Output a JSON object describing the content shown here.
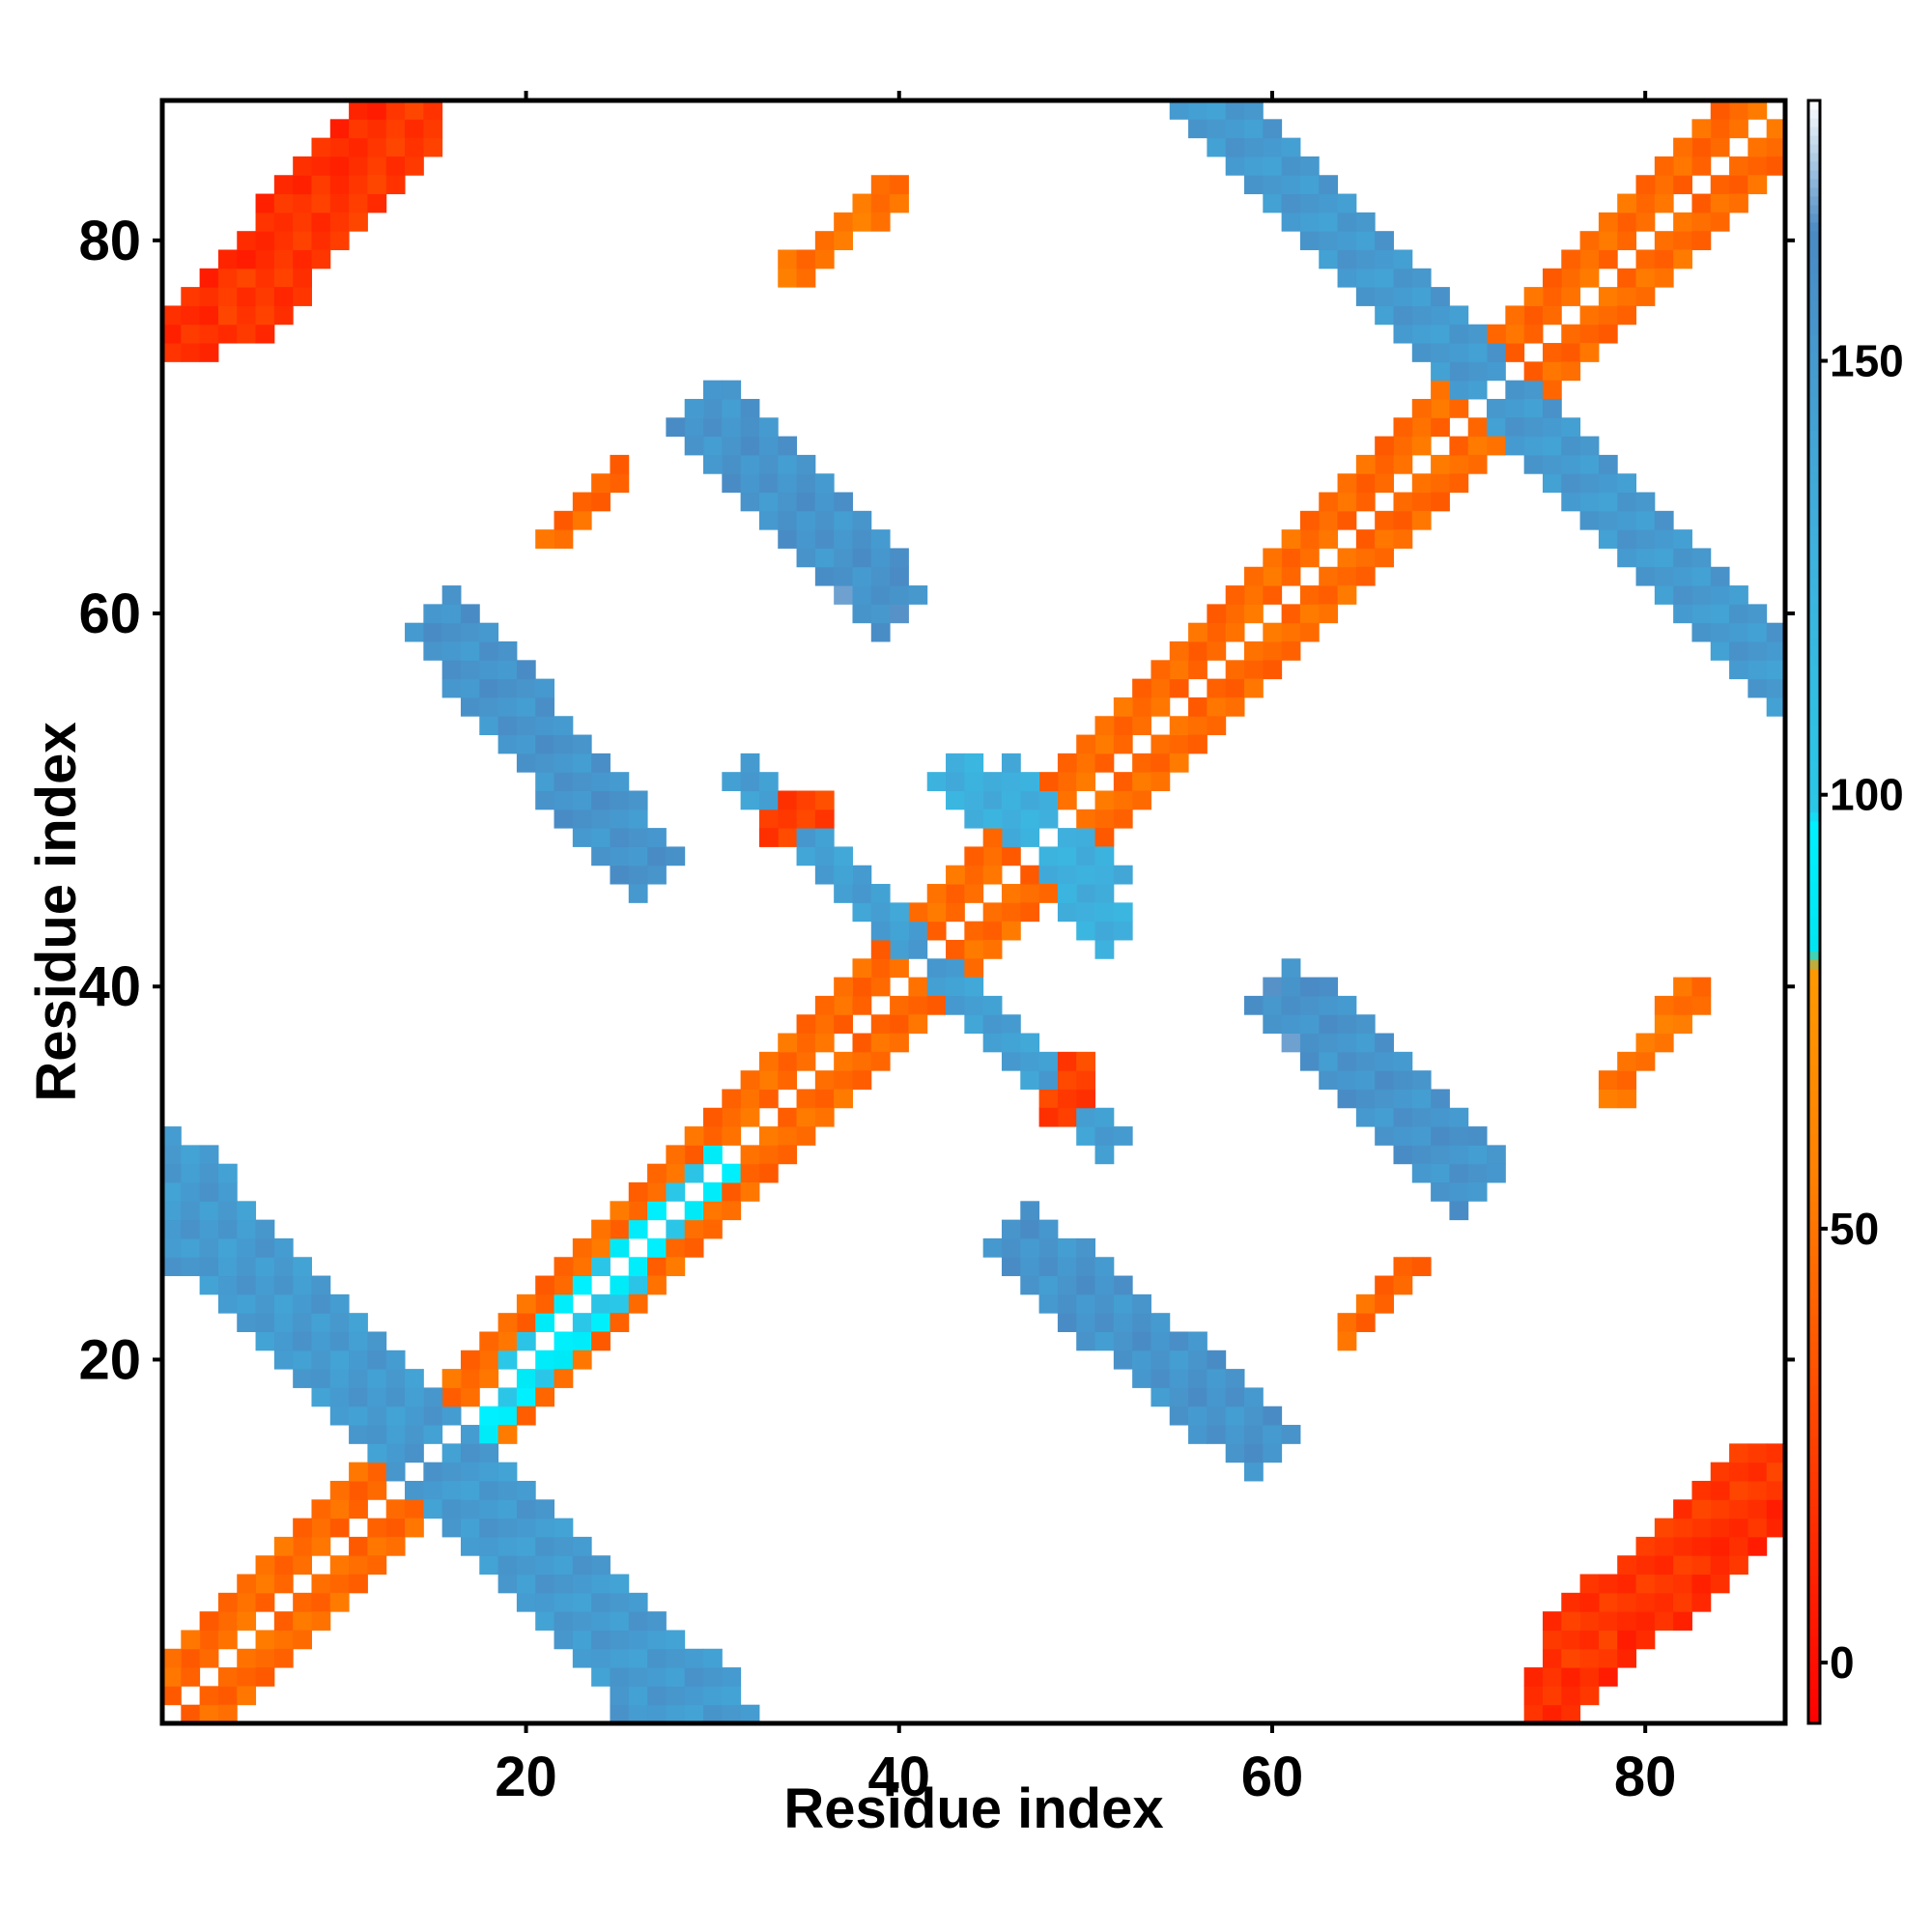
{
  "chart_data": {
    "type": "heatmap",
    "title": "",
    "xlabel": "Residue index",
    "ylabel": "Residue index",
    "xlim": [
      0.5,
      87.5
    ],
    "ylim": [
      0.5,
      87.5
    ],
    "x_ticks": [
      20,
      40,
      60,
      80
    ],
    "y_ticks": [
      20,
      40,
      60,
      80
    ],
    "grid": false,
    "colorbar": {
      "range": [
        -7,
        180
      ],
      "ticks": [
        0,
        50,
        100,
        150
      ],
      "stops": [
        {
          "value": -7,
          "color": "#ff0000"
        },
        {
          "value": 30,
          "color": "#ff4a00"
        },
        {
          "value": 55,
          "color": "#ff7f00"
        },
        {
          "value": 80,
          "color": "#ff9900"
        },
        {
          "value": 82,
          "color": "#00e6f2"
        },
        {
          "value": 97,
          "color": "#00f0ff"
        },
        {
          "value": 98,
          "color": "#29c8e8"
        },
        {
          "value": 130,
          "color": "#3fb0dd"
        },
        {
          "value": 165,
          "color": "#4a8ac4"
        },
        {
          "value": 180,
          "color": "#ffffff"
        }
      ]
    },
    "clusters": [
      {
        "x": [
          2,
          87
        ],
        "y": [
          2,
          87
        ],
        "diag": 1,
        "w": 1.6,
        "value": 10,
        "reflect": true
      },
      {
        "x": [
          2,
          87
        ],
        "y": [
          2,
          87
        ],
        "diag": 1,
        "w": 2.2,
        "value": 45,
        "reflect": true
      },
      {
        "x": [
          15,
          30
        ],
        "y": [
          14,
          30
        ],
        "diag": 1,
        "w": 1.2,
        "value": 95,
        "reflect": false
      },
      {
        "x": [
          1,
          30
        ],
        "y": [
          28,
          1
        ],
        "diag": -1,
        "w": 2.2,
        "value": 150,
        "reflect": true
      },
      {
        "x": [
          16,
          26
        ],
        "y": [
          59,
          47
        ],
        "diag": -1,
        "w": 2.0,
        "value": 155,
        "reflect": true
      },
      {
        "x": [
          31,
          39
        ],
        "y": [
          70,
          61
        ],
        "diag": -1,
        "w": 2.0,
        "value": 160,
        "reflect": true
      },
      {
        "x": [
          38,
          51
        ],
        "y": [
          45,
          32
        ],
        "diag": -1,
        "w": 1.4,
        "value": 145,
        "reflect": true
      },
      {
        "x": [
          46,
          51
        ],
        "y": [
          51,
          43
        ],
        "diag": -1,
        "w": 1.4,
        "value": 130,
        "reflect": true
      },
      {
        "x": [
          63,
          70
        ],
        "y": [
          38,
          30
        ],
        "diag": -1,
        "w": 2.0,
        "value": 155,
        "reflect": true
      },
      {
        "x": [
          57,
          87
        ],
        "y": [
          87,
          57
        ],
        "diag": -1,
        "w": 2.0,
        "value": 150,
        "reflect": false
      },
      {
        "x": [
          2,
          13
        ],
        "y": [
          75,
          87
        ],
        "diag": 1,
        "w": 1.8,
        "value": 15,
        "reflect": true
      },
      {
        "x": [
          76,
          86
        ],
        "y": [
          5,
          14
        ],
        "diag": 1,
        "w": 1.6,
        "value": 20,
        "reflect": true
      },
      {
        "x": [
          34,
          40
        ],
        "y": [
          78,
          83
        ],
        "diag": 1,
        "w": 0.8,
        "value": 50,
        "reflect": true
      },
      {
        "x": [
          78,
          82
        ],
        "y": [
          34,
          39
        ],
        "diag": 1,
        "w": 0.8,
        "value": 50,
        "reflect": true
      },
      {
        "x": [
          64,
          68
        ],
        "y": [
          22,
          25
        ],
        "diag": 1,
        "w": 0.7,
        "value": 45,
        "reflect": true
      },
      {
        "x": [
          21,
          24
        ],
        "y": [
          64,
          67
        ],
        "diag": 1,
        "w": 0.7,
        "value": 45,
        "reflect": true
      },
      {
        "x": [
          33,
          35
        ],
        "y": [
          48,
          50
        ],
        "diag": 1,
        "w": 0.9,
        "value": 25,
        "reflect": true
      },
      {
        "x": [
          49,
          50
        ],
        "y": [
          34,
          36
        ],
        "diag": 1,
        "w": 0.9,
        "value": 25,
        "reflect": true
      }
    ]
  }
}
